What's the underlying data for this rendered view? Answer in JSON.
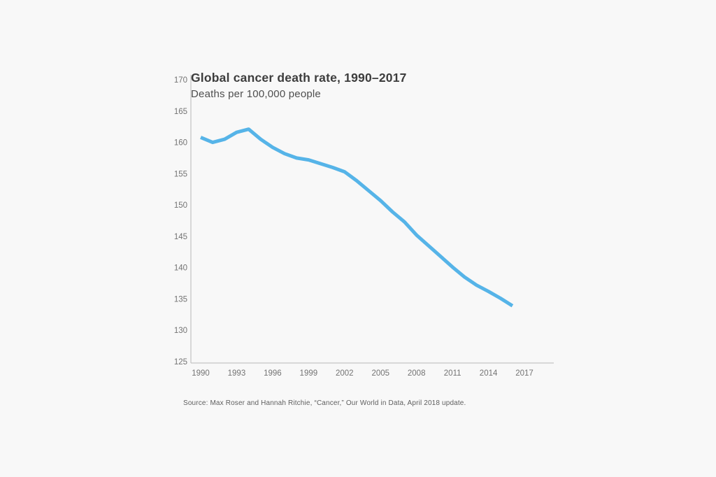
{
  "chart": {
    "title": "Global cancer death rate, 1990–2017",
    "subtitle": "Deaths per 100,000 people",
    "source": "Source: Max Roser and Hannah Ritchie, “Cancer,” Our World in Data, April 2018 update."
  },
  "chart_data": {
    "type": "line",
    "title": "Global cancer death rate, 1990–2017",
    "subtitle": "Deaths per 100,000 people",
    "xlabel": "",
    "ylabel": "Deaths per 100,000 people",
    "x": [
      1990,
      1991,
      1992,
      1993,
      1994,
      1995,
      1996,
      1997,
      1998,
      1999,
      2000,
      2001,
      2002,
      2003,
      2004,
      2005,
      2006,
      2007,
      2008,
      2009,
      2010,
      2011,
      2012,
      2013,
      2014,
      2015,
      2016
    ],
    "series": [
      {
        "name": "Global cancer death rate",
        "values": [
          160.8,
          160.0,
          160.5,
          161.6,
          162.1,
          160.5,
          159.2,
          158.2,
          157.5,
          157.2,
          156.6,
          156.0,
          155.3,
          153.9,
          152.3,
          150.7,
          148.9,
          147.3,
          145.2,
          143.5,
          141.8,
          140.1,
          138.5,
          137.2,
          136.2,
          135.1,
          133.9
        ]
      }
    ],
    "xlim": [
      1990,
      2017
    ],
    "ylim": [
      125,
      170
    ],
    "xticks": [
      1990,
      1993,
      1996,
      1999,
      2002,
      2005,
      2008,
      2011,
      2014,
      2017
    ],
    "yticks": [
      125,
      130,
      135,
      140,
      145,
      150,
      155,
      160,
      165,
      170
    ],
    "grid": false,
    "legend": "none",
    "source": "Source: Max Roser and Hannah Ritchie, “Cancer,” Our World in Data, April 2018 update.",
    "colors": {
      "line": "#56b4e8",
      "background": "#f8f8f8",
      "axis": "#b9b9b9",
      "title": "#3d3d3d",
      "subtitle": "#4e4e4e",
      "tick_labels": "#737373",
      "source": "#5f5f5f"
    }
  }
}
